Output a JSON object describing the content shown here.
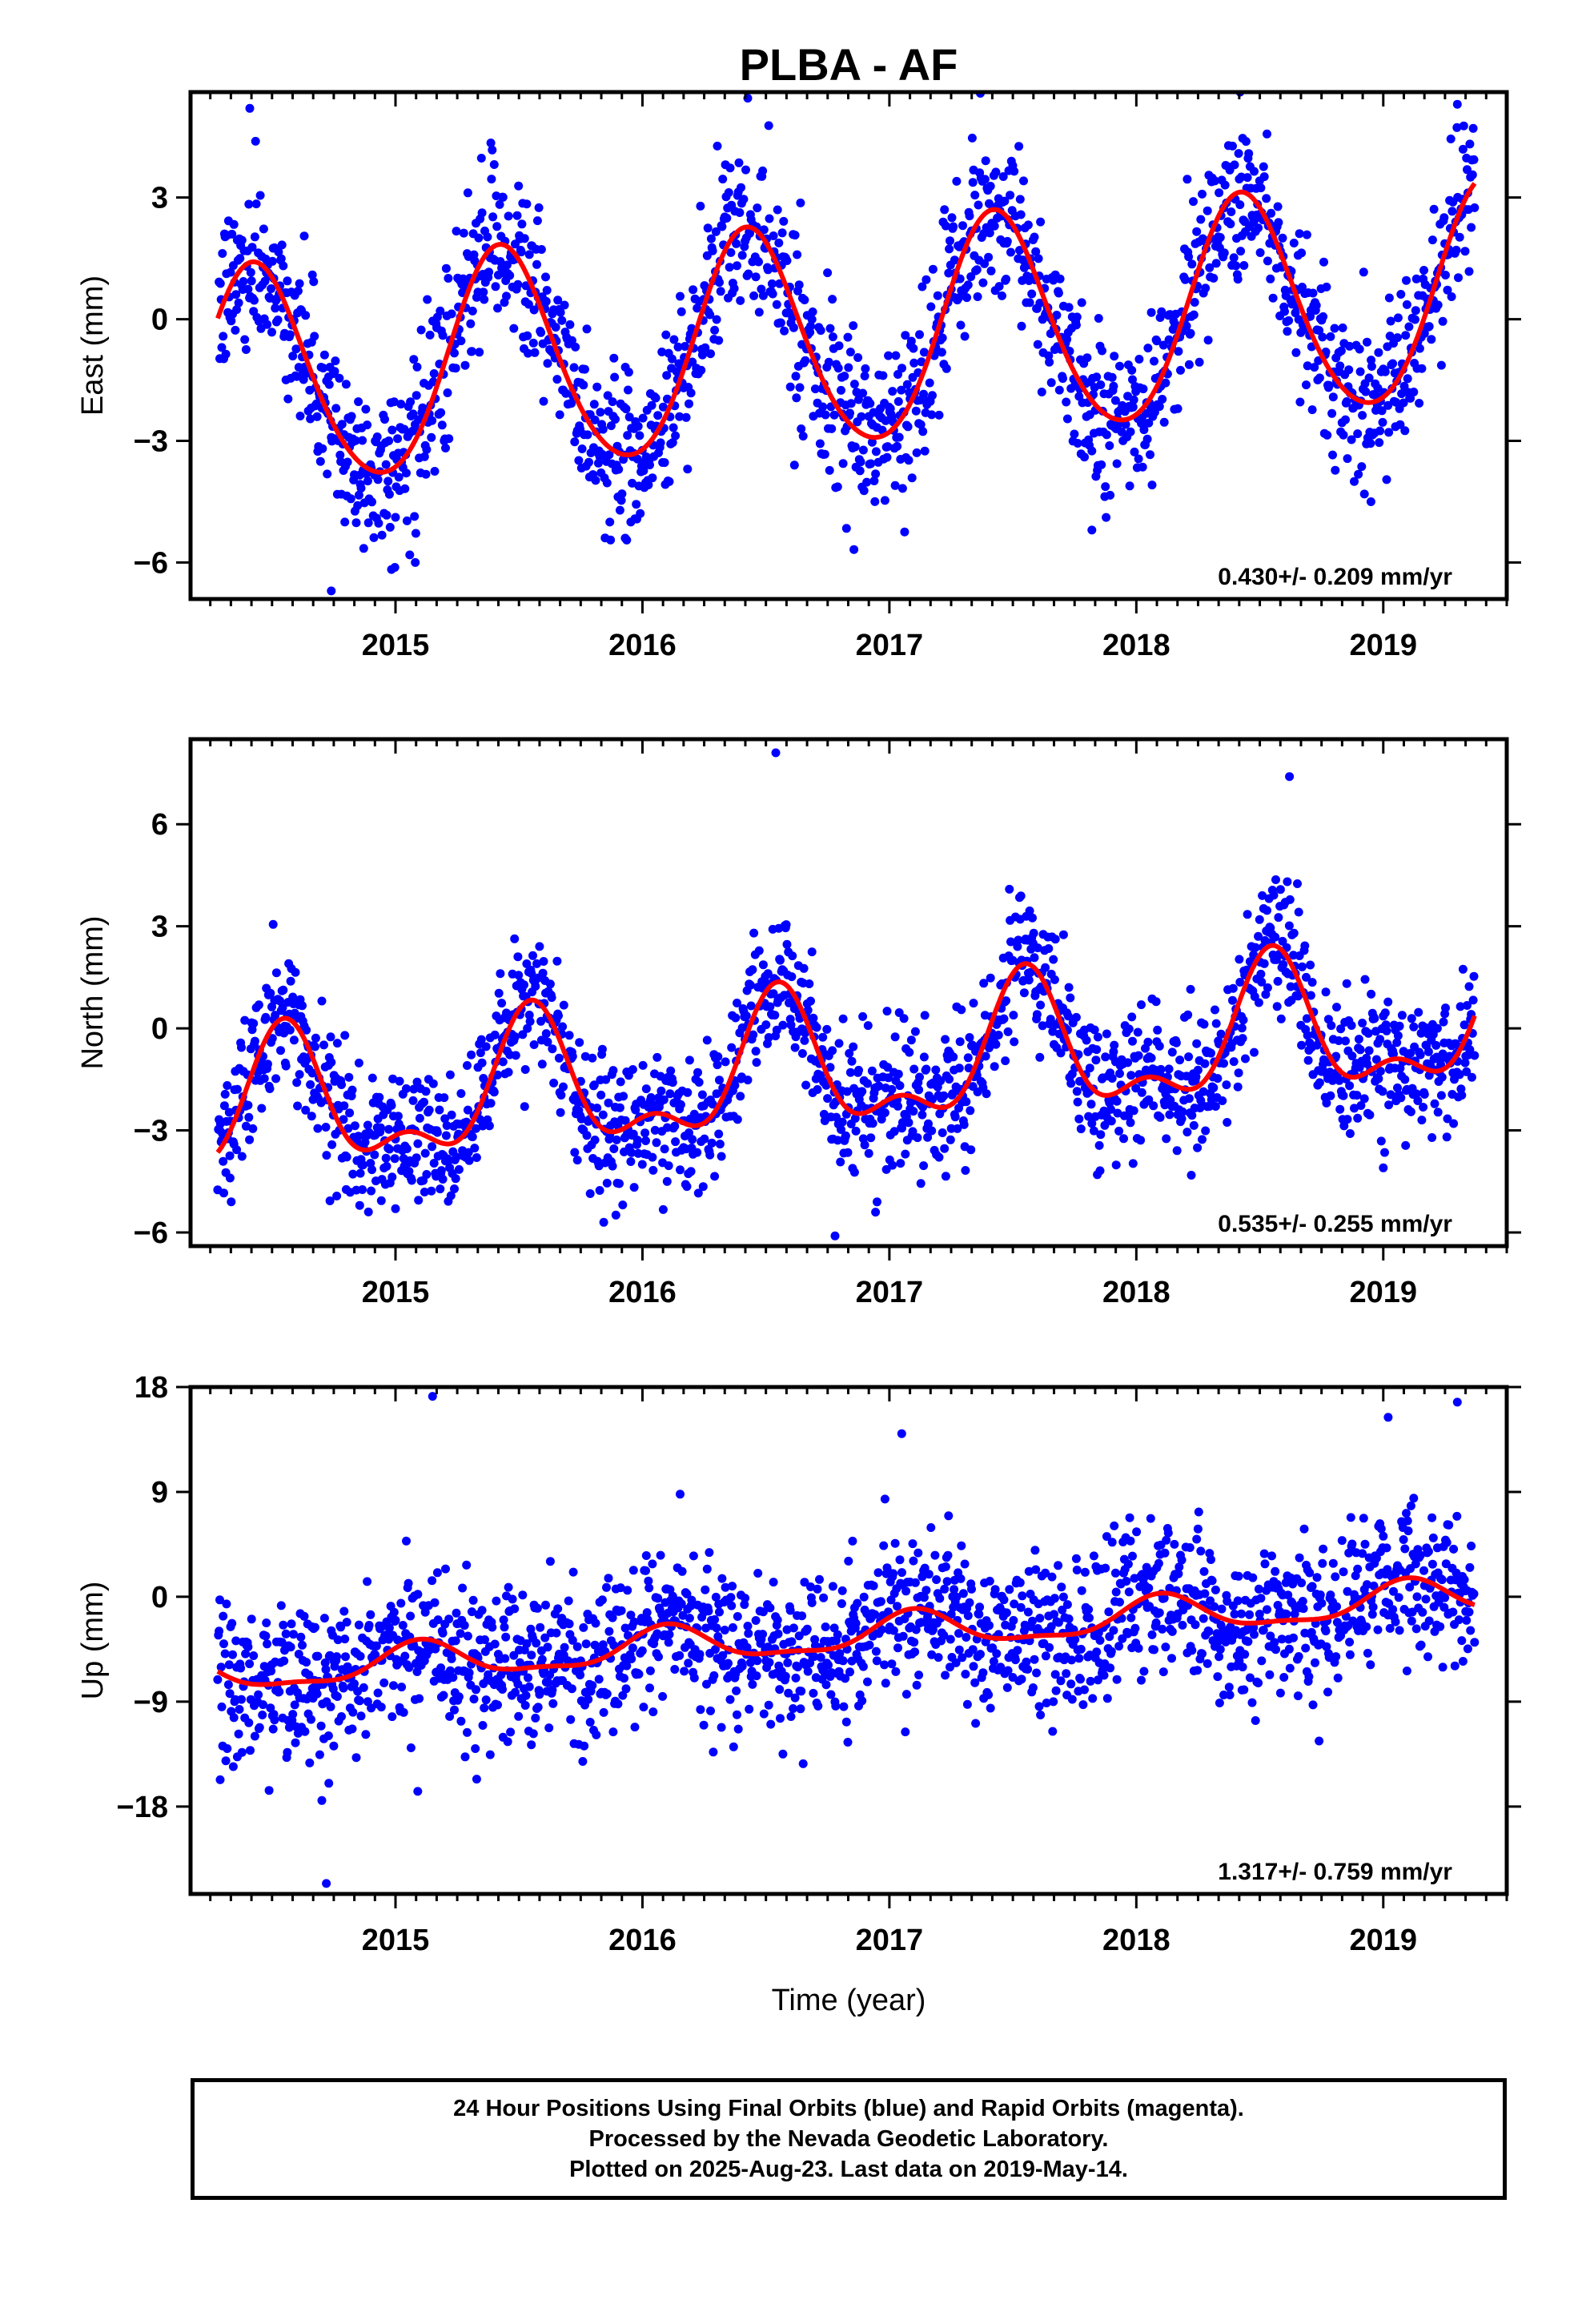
{
  "title": "PLBA - AF",
  "footer": {
    "line1": "24 Hour Positions Using Final Orbits (blue) and Rapid Orbits (magenta).",
    "line2": "Processed by the Nevada Geodetic Laboratory.",
    "line3": "Plotted on 2025-Aug-23. Last data on 2019-May-14."
  },
  "colors": {
    "points": "#0000ff",
    "model": "#ff0000",
    "frame": "#000000"
  },
  "chart_data": [
    {
      "type": "scatter",
      "id": "east",
      "ylabel": "East (mm)",
      "xlabel": "",
      "rate_text": "0.430+/- 0.209 mm/yr",
      "xlim": [
        2014.17,
        2019.5
      ],
      "ylim": [
        -6.9,
        5.6
      ],
      "xticks": [
        2015,
        2016,
        2017,
        2018,
        2019
      ],
      "xtick_labels": [
        "2015",
        "2016",
        "2017",
        "2018",
        "2019"
      ],
      "yticks": [
        -6,
        -3,
        0,
        3
      ],
      "ytick_labels": [
        "−6",
        "−3",
        "0",
        "3"
      ],
      "x_start": 2014.28,
      "x_end": 2019.37,
      "model": {
        "offset": -0.5,
        "trend": 0.43,
        "annual_amp": 2.7,
        "annual_peak": 2014.43,
        "semiannual_amp": 0.25,
        "semiannual_peak": 2014.4
      },
      "noise_sd": 1.0,
      "outliers": [
        [
          2014.74,
          -6.7
        ],
        [
          2015.08,
          -6.0
        ],
        [
          2015.93,
          -5.4
        ],
        [
          2017.82,
          -5.2
        ],
        [
          2018.95,
          -4.5
        ],
        [
          2019.3,
          5.3
        ],
        [
          2018.42,
          5.6
        ],
        [
          2014.41,
          5.2
        ]
      ]
    },
    {
      "type": "scatter",
      "id": "north",
      "ylabel": "North (mm)",
      "xlabel": "",
      "rate_text": "0.535+/- 0.255 mm/yr",
      "xlim": [
        2014.17,
        2019.5
      ],
      "ylim": [
        -6.4,
        8.5
      ],
      "xticks": [
        2015,
        2016,
        2017,
        2018,
        2019
      ],
      "xtick_labels": [
        "2015",
        "2016",
        "2017",
        "2018",
        "2019"
      ],
      "yticks": [
        -6,
        -3,
        0,
        3,
        6
      ],
      "ytick_labels": [
        "−6",
        "−3",
        "0",
        "3",
        "6"
      ],
      "x_start": 2014.28,
      "x_end": 2019.37,
      "model": {
        "offset": -1.2,
        "trend": 0.535,
        "annual_amp": 1.8,
        "annual_peak": 2014.55,
        "semiannual_amp": 0.9,
        "semiannual_peak": 2014.55
      },
      "noise_sd": 1.0,
      "outliers": [
        [
          2016.54,
          8.1
        ],
        [
          2016.78,
          -6.1
        ],
        [
          2018.62,
          7.4
        ],
        [
          2014.33,
          -4.4
        ],
        [
          2015.0,
          -5.3
        ],
        [
          2016.1,
          -4.5
        ],
        [
          2016.95,
          -5.1
        ],
        [
          2019.0,
          -4.1
        ]
      ]
    },
    {
      "type": "scatter",
      "id": "up",
      "ylabel": "Up (mm)",
      "xlabel": "Time (year)",
      "rate_text": "1.317+/- 0.759 mm/yr",
      "xlim": [
        2014.17,
        2019.5
      ],
      "ylim": [
        -25.5,
        18
      ],
      "xticks": [
        2015,
        2016,
        2017,
        2018,
        2019
      ],
      "xtick_labels": [
        "2015",
        "2016",
        "2017",
        "2018",
        "2019"
      ],
      "yticks": [
        -18,
        -9,
        0,
        9,
        18
      ],
      "ytick_labels": [
        "−18",
        "−9",
        "0",
        "9",
        "18"
      ],
      "x_start": 2014.28,
      "x_end": 2019.37,
      "model": {
        "offset": -3.4,
        "trend": 1.317,
        "annual_amp": 1.5,
        "annual_peak": 2015.1,
        "semiannual_amp": 0.5,
        "semiannual_peak": 2015.1
      },
      "noise_sd": 3.3,
      "outliers": [
        [
          2015.15,
          17.2
        ],
        [
          2014.72,
          -24.6
        ],
        [
          2014.29,
          -15.7
        ],
        [
          2014.3,
          -12.8
        ],
        [
          2014.73,
          -16.0
        ],
        [
          2015.09,
          -16.7
        ],
        [
          2019.3,
          16.7
        ],
        [
          2019.02,
          15.4
        ],
        [
          2017.05,
          14.0
        ],
        [
          2014.75,
          -12.8
        ],
        [
          2015.55,
          -12.7
        ]
      ]
    }
  ]
}
